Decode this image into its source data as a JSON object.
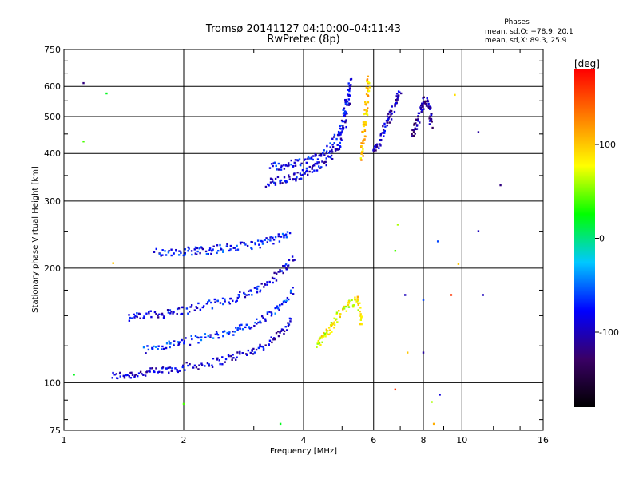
{
  "chart_data": {
    "type": "scatter",
    "title": "Tromsø 20141127 04:10:00–04:11:43",
    "subtitle": "RwPretec (8p)",
    "xlabel": "Frequency [MHz]",
    "ylabel": "Stationary phase Virtual Height [km]",
    "x_scale": "log",
    "y_scale": "log",
    "xlim": [
      1,
      16
    ],
    "ylim": [
      75,
      750
    ],
    "x_ticks": [
      1,
      2,
      4,
      6,
      8,
      10,
      16
    ],
    "y_ticks": [
      75,
      100,
      200,
      300,
      400,
      500,
      600,
      750
    ],
    "grid": true,
    "phases_box": {
      "title": "Phases",
      "line1": "mean, sd,O: −78.9, 20.1",
      "line2": "mean, sd,X:  89.3, 25.9"
    },
    "colorbar": {
      "label": "[deg]",
      "range": [
        -180,
        180
      ],
      "ticks": [
        100,
        0,
        -100
      ],
      "colors": [
        "#000000",
        "#3a0066",
        "#0000ff",
        "#00c8ff",
        "#00ff00",
        "#ffff00",
        "#ff8000",
        "#ff0000"
      ]
    },
    "traces": [
      {
        "name": "",
        "phase": -95,
        "points": [
          [
            1.32,
            104
          ],
          [
            1.45,
            105
          ],
          [
            1.6,
            106
          ],
          [
            1.8,
            108
          ],
          [
            2.0,
            110
          ],
          [
            2.3,
            112
          ],
          [
            2.6,
            116
          ],
          [
            2.9,
            120
          ],
          [
            3.2,
            125
          ],
          [
            3.5,
            135
          ],
          [
            3.75,
            148
          ]
        ]
      },
      {
        "name": "",
        "phase": -85,
        "points": [
          [
            1.45,
            148
          ],
          [
            1.6,
            150
          ],
          [
            1.8,
            152
          ],
          [
            2.0,
            155
          ],
          [
            2.3,
            160
          ],
          [
            2.6,
            165
          ],
          [
            2.9,
            172
          ],
          [
            3.2,
            180
          ],
          [
            3.5,
            195
          ],
          [
            3.8,
            215
          ]
        ]
      },
      {
        "name": "",
        "phase": -70,
        "points": [
          [
            1.6,
            122
          ],
          [
            1.8,
            125
          ],
          [
            2.0,
            128
          ],
          [
            2.3,
            132
          ],
          [
            2.6,
            136
          ],
          [
            2.9,
            140
          ],
          [
            3.2,
            148
          ],
          [
            3.5,
            158
          ],
          [
            3.8,
            175
          ]
        ]
      },
      {
        "name": "",
        "phase": -75,
        "points": [
          [
            1.7,
            220
          ],
          [
            1.9,
            221
          ],
          [
            2.1,
            222
          ],
          [
            2.3,
            223
          ],
          [
            2.5,
            225
          ],
          [
            2.8,
            228
          ],
          [
            3.1,
            232
          ],
          [
            3.4,
            238
          ],
          [
            3.7,
            245
          ]
        ]
      },
      {
        "name": "",
        "phase": -90,
        "points": [
          [
            3.25,
            335
          ],
          [
            3.5,
            340
          ],
          [
            3.75,
            345
          ],
          [
            4.0,
            355
          ],
          [
            4.3,
            368
          ],
          [
            4.6,
            385
          ],
          [
            4.9,
            420
          ],
          [
            5.1,
            480
          ],
          [
            5.2,
            560
          ],
          [
            5.25,
            640
          ]
        ]
      },
      {
        "name": "",
        "phase": -80,
        "points": [
          [
            3.3,
            370
          ],
          [
            3.6,
            372
          ],
          [
            3.9,
            378
          ],
          [
            4.2,
            388
          ],
          [
            4.6,
            410
          ],
          [
            4.9,
            445
          ],
          [
            5.05,
            500
          ],
          [
            5.15,
            570
          ]
        ]
      },
      {
        "name": "",
        "phase": 100,
        "points": [
          [
            5.6,
            390
          ],
          [
            5.65,
            430
          ],
          [
            5.7,
            480
          ],
          [
            5.75,
            530
          ],
          [
            5.8,
            580
          ],
          [
            5.85,
            630
          ]
        ]
      },
      {
        "name": "",
        "phase": -100,
        "points": [
          [
            6.0,
            400
          ],
          [
            6.2,
            430
          ],
          [
            6.4,
            470
          ],
          [
            6.6,
            500
          ],
          [
            6.8,
            540
          ],
          [
            7.0,
            580
          ]
        ]
      },
      {
        "name": "",
        "phase": 80,
        "points": [
          [
            4.3,
            125
          ],
          [
            4.5,
            132
          ],
          [
            4.7,
            140
          ],
          [
            4.9,
            150
          ],
          [
            5.2,
            160
          ],
          [
            5.5,
            165
          ],
          [
            5.6,
            140
          ]
        ]
      },
      {
        "name": "",
        "phase": -110,
        "points": [
          [
            7.5,
            450
          ],
          [
            7.7,
            480
          ],
          [
            7.9,
            520
          ],
          [
            8.1,
            560
          ],
          [
            8.3,
            520
          ],
          [
            8.4,
            470
          ]
        ]
      }
    ],
    "isolated_points": [
      {
        "x": 1.12,
        "y": 612,
        "phase": -120
      },
      {
        "x": 1.28,
        "y": 575,
        "phase": 20
      },
      {
        "x": 1.12,
        "y": 430,
        "phase": 40
      },
      {
        "x": 1.33,
        "y": 206,
        "phase": 100
      },
      {
        "x": 9.6,
        "y": 570,
        "phase": 90
      },
      {
        "x": 11.0,
        "y": 455,
        "phase": -110
      },
      {
        "x": 12.5,
        "y": 330,
        "phase": -120
      },
      {
        "x": 11.0,
        "y": 250,
        "phase": -100
      },
      {
        "x": 9.8,
        "y": 205,
        "phase": 100
      },
      {
        "x": 11.3,
        "y": 170,
        "phase": -100
      },
      {
        "x": 9.4,
        "y": 170,
        "phase": 160
      },
      {
        "x": 8.0,
        "y": 120,
        "phase": -110
      },
      {
        "x": 6.8,
        "y": 96,
        "phase": 160
      },
      {
        "x": 8.8,
        "y": 93,
        "phase": -90
      },
      {
        "x": 8.4,
        "y": 89,
        "phase": 60
      },
      {
        "x": 8.5,
        "y": 78,
        "phase": 110
      },
      {
        "x": 3.5,
        "y": 78,
        "phase": 20
      },
      {
        "x": 2.0,
        "y": 88,
        "phase": 40
      },
      {
        "x": 1.06,
        "y": 105,
        "phase": 20
      },
      {
        "x": 6.8,
        "y": 222,
        "phase": 40
      },
      {
        "x": 6.9,
        "y": 260,
        "phase": 60
      },
      {
        "x": 8.7,
        "y": 235,
        "phase": -60
      },
      {
        "x": 7.2,
        "y": 170,
        "phase": -100
      },
      {
        "x": 7.3,
        "y": 120,
        "phase": 100
      },
      {
        "x": 8.0,
        "y": 165,
        "phase": -60
      }
    ]
  }
}
